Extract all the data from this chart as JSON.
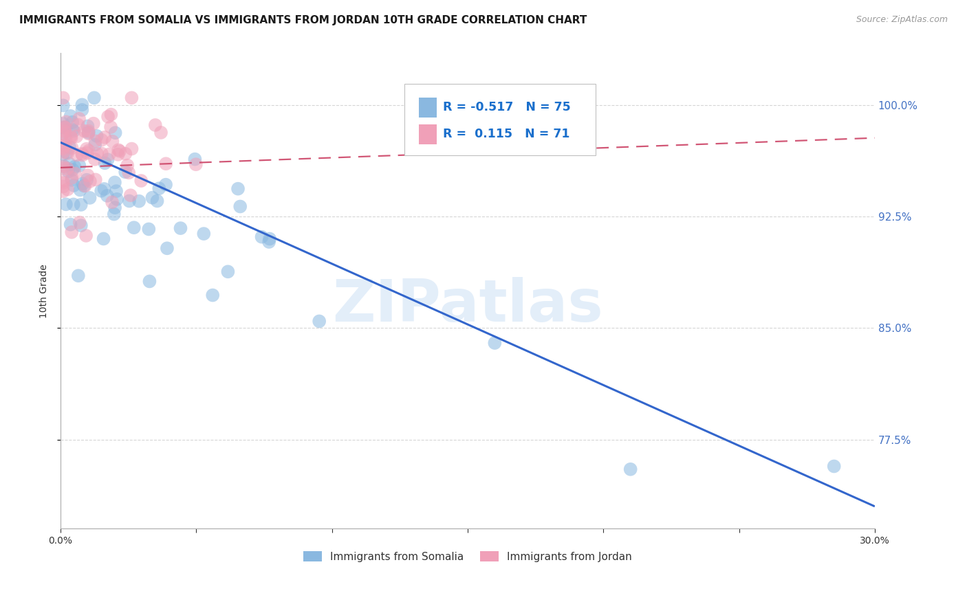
{
  "title": "IMMIGRANTS FROM SOMALIA VS IMMIGRANTS FROM JORDAN 10TH GRADE CORRELATION CHART",
  "source": "Source: ZipAtlas.com",
  "ylabel": "10th Grade",
  "ytick_labels": [
    "100.0%",
    "92.5%",
    "85.0%",
    "77.5%"
  ],
  "ytick_values": [
    1.0,
    0.925,
    0.85,
    0.775
  ],
  "xlim": [
    0.0,
    0.3
  ],
  "ylim": [
    0.715,
    1.035
  ],
  "watermark": "ZIPatlas",
  "somalia_color": "#8ab8e0",
  "jordan_color": "#f0a0b8",
  "somalia_line_color": "#3366cc",
  "jordan_line_color": "#cc4466",
  "legend_somalia_label": "Immigrants from Somalia",
  "legend_jordan_label": "Immigrants from Jordan",
  "somalia_R": -0.517,
  "somalia_N": 75,
  "jordan_R": 0.115,
  "jordan_N": 71,
  "somalia_line_x0": 0.0,
  "somalia_line_y0": 0.975,
  "somalia_line_x1": 0.3,
  "somalia_line_y1": 0.73,
  "jordan_line_x0": 0.0,
  "jordan_line_y0": 0.958,
  "jordan_line_x1": 0.3,
  "jordan_line_y1": 0.978,
  "background_color": "#ffffff",
  "grid_color": "#cccccc",
  "right_axis_color": "#4472c4",
  "title_fontsize": 11,
  "axis_label_fontsize": 10,
  "tick_fontsize": 10
}
